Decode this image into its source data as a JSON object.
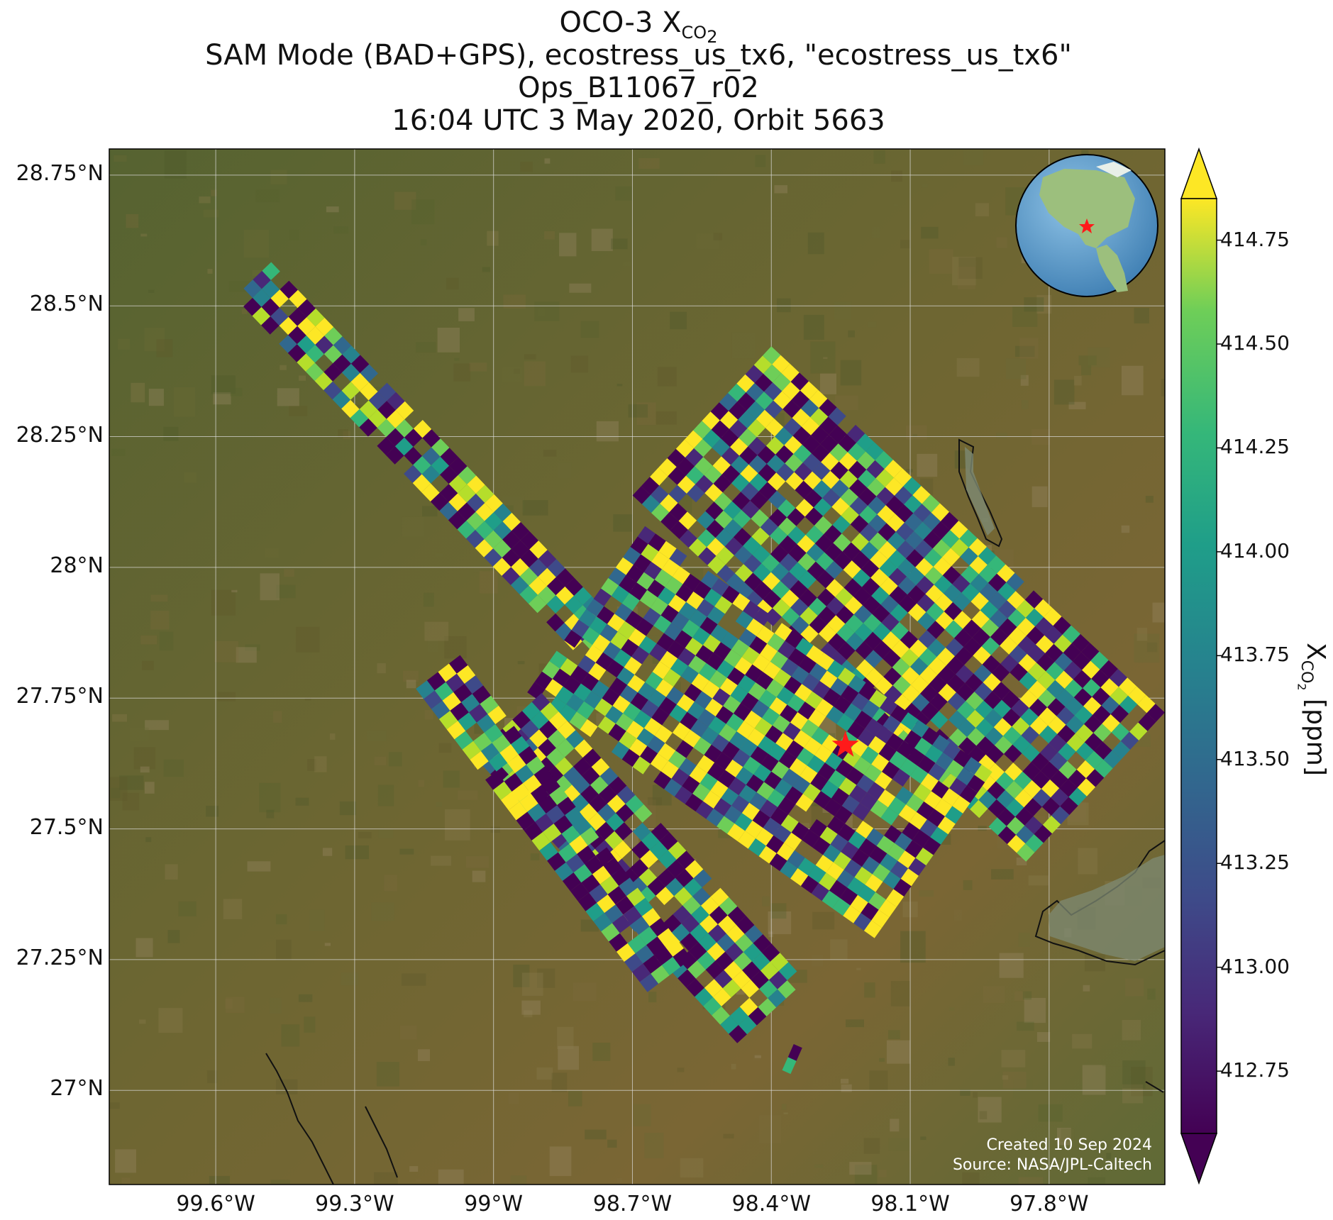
{
  "title": {
    "line1_prefix": "OCO-3 X",
    "line1_sub": "CO",
    "line1_sub2": "2",
    "line2": "SAM Mode (BAD+GPS), ecostress_us_tx6, \"ecostress_us_tx6\"",
    "line3": "Ops_B11067_r02",
    "line4": "16:04 UTC 3 May 2020, Orbit 5663"
  },
  "colors": {
    "ground_dark": "#4a5a2c",
    "ground_light": "#7a6a3a",
    "target_star": "#ff1a1a",
    "gridline": "#dddddd",
    "credit_text": "#ffffff"
  },
  "lat_ticks": [
    "28.75°N",
    "28.5°N",
    "28.25°N",
    "28°N",
    "27.75°N",
    "27.5°N",
    "27.25°N",
    "27°N"
  ],
  "lon_ticks": [
    "99.6°W",
    "99.3°W",
    "99°W",
    "98.7°W",
    "98.4°W",
    "98.1°W",
    "97.8°W"
  ],
  "colorbar": {
    "min": 412.6,
    "max": 414.85,
    "extend": "both",
    "ticks": [
      "414.75",
      "414.50",
      "414.25",
      "414.00",
      "413.75",
      "413.50",
      "413.25",
      "413.00",
      "412.75"
    ],
    "label_prefix": "X",
    "label_sub": "CO",
    "label_sub2": "2",
    "label_suffix": " [ppm]",
    "colormap": "viridis"
  },
  "map_extent": {
    "lon_min": -99.83,
    "lon_max": -97.55,
    "lat_min": 26.82,
    "lat_max": 28.8
  },
  "target": {
    "lon": -98.24,
    "lat": 27.66,
    "icon": "star-icon"
  },
  "inset_globe": {
    "icon": "globe-icon",
    "marker_icon": "star-icon"
  },
  "credit": {
    "line1": "Created 10 Sep 2024",
    "line2": "Source: NASA/JPL-Caltech"
  },
  "swaths": [
    {
      "name": "northwest-swath",
      "from": [
        -99.52,
        28.55
      ],
      "to": [
        -98.75,
        27.84
      ],
      "width_deg": 0.11
    },
    {
      "name": "north-block",
      "from": [
        -98.55,
        28.28
      ],
      "to": [
        -97.7,
        27.58
      ],
      "width_deg": 0.44
    },
    {
      "name": "central-block",
      "from": [
        -98.8,
        27.92
      ],
      "to": [
        -98.05,
        27.45
      ],
      "width_deg": 0.44
    },
    {
      "name": "southwest-swath-a",
      "from": [
        -98.97,
        27.7
      ],
      "to": [
        -98.4,
        27.15
      ],
      "width_deg": 0.2
    },
    {
      "name": "southwest-swath-b",
      "from": [
        -99.12,
        27.8
      ],
      "to": [
        -98.62,
        27.22
      ],
      "width_deg": 0.12
    },
    {
      "name": "small-strip",
      "from": [
        -98.33,
        27.11
      ],
      "to": [
        -98.38,
        27.01
      ],
      "width_deg": 0.02
    }
  ]
}
